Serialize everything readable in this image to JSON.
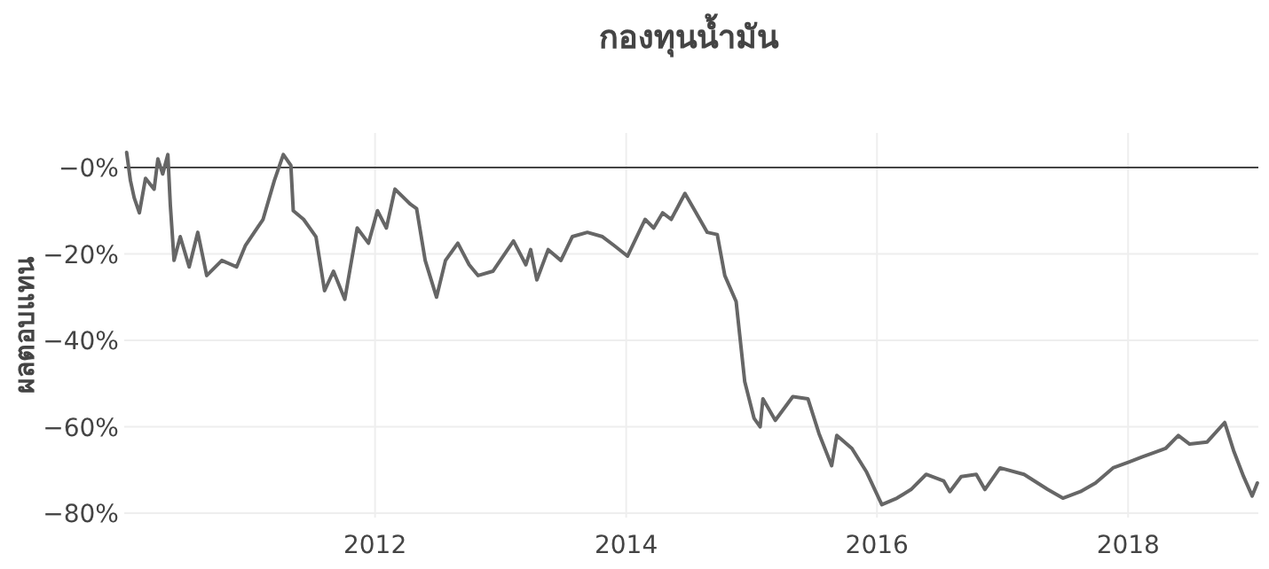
{
  "chart_data": {
    "type": "line",
    "title": "กองทุนน้ำมัน",
    "ylabel": "ผลตอบแทน",
    "x": [
      "2010-01-08",
      "2010-01-19",
      "2010-01-30",
      "2010-02-14",
      "2010-03-04",
      "2010-03-29",
      "2010-04-09",
      "2010-04-23",
      "2010-05-08",
      "2010-05-15",
      "2010-05-26",
      "2010-06-13",
      "2010-07-09",
      "2010-08-03",
      "2010-08-29",
      "2010-10-12",
      "2010-11-24",
      "2010-12-20",
      "2011-02-09",
      "2011-03-14",
      "2011-04-09",
      "2011-05-01",
      "2011-05-08",
      "2011-06-07",
      "2011-07-13",
      "2011-08-07",
      "2011-09-02",
      "2011-10-05",
      "2011-11-10",
      "2011-12-13",
      "2012-01-08",
      "2012-02-03",
      "2012-02-28",
      "2012-04-13",
      "2012-05-01",
      "2012-05-26",
      "2012-06-28",
      "2012-07-24",
      "2012-08-29",
      "2012-10-01",
      "2012-10-27",
      "2012-12-09",
      "2013-02-07",
      "2013-03-15",
      "2013-03-29",
      "2013-04-16",
      "2013-05-19",
      "2013-06-25",
      "2013-07-28",
      "2013-09-10",
      "2013-10-24",
      "2013-11-26",
      "2014-01-05",
      "2014-02-25",
      "2014-03-22",
      "2014-04-17",
      "2014-05-12",
      "2014-06-21",
      "2014-07-20",
      "2014-08-25",
      "2014-09-23",
      "2014-10-15",
      "2014-11-17",
      "2014-12-12",
      "2015-01-08",
      "2015-01-26",
      "2015-02-03",
      "2015-03-11",
      "2015-05-01",
      "2015-06-14",
      "2015-07-16",
      "2015-08-22",
      "2015-09-06",
      "2015-10-20",
      "2015-12-02",
      "2016-01-15",
      "2016-02-28",
      "2016-04-09",
      "2016-05-23",
      "2016-07-13",
      "2016-07-31",
      "2016-09-02",
      "2016-10-16",
      "2016-11-10",
      "2016-12-24",
      "2017-03-04",
      "2017-05-12",
      "2017-06-25",
      "2017-08-15",
      "2017-09-28",
      "2017-11-18",
      "2018-01-08",
      "2018-02-10",
      "2018-04-20",
      "2018-05-27",
      "2018-06-29",
      "2018-08-19",
      "2018-10-09",
      "2018-11-04",
      "2018-12-03",
      "2018-12-28",
      "2019-01-12"
    ],
    "series": [
      {
        "color": "#666666",
        "values": [
          3.5,
          -3,
          -7,
          -10.5,
          -2.5,
          -5,
          2,
          -1.5,
          3,
          -8.5,
          -21.5,
          -16,
          -23,
          -15,
          -25,
          -21.5,
          -23,
          -18,
          -12,
          -3,
          3,
          0.5,
          -10,
          -12,
          -16,
          -28.5,
          -24,
          -30.5,
          -14,
          -17.5,
          -10,
          -14,
          -5,
          -8.5,
          -9.5,
          -21.5,
          -30,
          -21.5,
          -17.5,
          -22.5,
          -25,
          -24,
          -17,
          -22.5,
          -19,
          -26,
          -19,
          -21.5,
          -16,
          -15,
          -16,
          -18,
          -20.5,
          -12,
          -14,
          -10.5,
          -12,
          -6,
          -10,
          -15,
          -15.5,
          -25,
          -31,
          -49.5,
          -58,
          -60,
          -53.5,
          -58.5,
          -53,
          -53.5,
          -61.5,
          -69,
          -62,
          -65,
          -70.5,
          -78,
          -76.5,
          -74.5,
          -71,
          -72.5,
          -75,
          -71.5,
          -71,
          -74.5,
          -69.5,
          -71,
          -74.5,
          -76.5,
          -75,
          -73,
          -69.5,
          -68,
          -67,
          -65,
          -62,
          -64,
          -63.5,
          -59,
          -65.5,
          -71.5,
          -76,
          -73
        ]
      }
    ],
    "xlim": [
      "2010-01-01",
      "2019-01-15"
    ],
    "xticks": [
      {
        "value": "2012-01-01",
        "label": "2012"
      },
      {
        "value": "2014-01-01",
        "label": "2014"
      },
      {
        "value": "2016-01-01",
        "label": "2016"
      },
      {
        "value": "2018-01-01",
        "label": "2018"
      }
    ],
    "ylim": [
      -81,
      8
    ],
    "yticks": [
      {
        "value": 0,
        "label": "−0%"
      },
      {
        "value": -20,
        "label": "−20%"
      },
      {
        "value": -40,
        "label": "−40%"
      },
      {
        "value": -60,
        "label": "−60%"
      },
      {
        "value": -80,
        "label": "−80%"
      }
    ],
    "ref_lines": [
      {
        "axis": "y",
        "value": 0,
        "color": "#444444"
      }
    ],
    "grid": true
  }
}
